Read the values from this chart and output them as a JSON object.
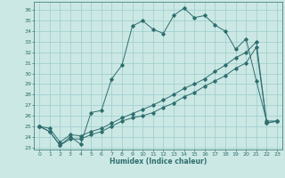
{
  "xlabel": "Humidex (Indice chaleur)",
  "bg_color": "#cce8e4",
  "grid_color": "#99cccc",
  "line_color": "#2d6e6e",
  "xlim": [
    -0.5,
    23.5
  ],
  "ylim": [
    22.8,
    36.8
  ],
  "xticks": [
    0,
    1,
    2,
    3,
    4,
    5,
    6,
    7,
    8,
    9,
    10,
    11,
    12,
    13,
    14,
    15,
    16,
    17,
    18,
    19,
    20,
    21,
    22,
    23
  ],
  "yticks": [
    23,
    24,
    25,
    26,
    27,
    28,
    29,
    30,
    31,
    32,
    33,
    34,
    35,
    36
  ],
  "line1_x": [
    0,
    1,
    2,
    3,
    4,
    5,
    6,
    7,
    8,
    9,
    10,
    11,
    12,
    13,
    14,
    15,
    16,
    17,
    18,
    19,
    20,
    21,
    22,
    23
  ],
  "line1_y": [
    25.0,
    24.5,
    23.2,
    24.0,
    23.3,
    26.3,
    26.5,
    29.5,
    30.8,
    34.5,
    35.0,
    34.2,
    33.8,
    35.5,
    36.2,
    35.3,
    35.5,
    34.6,
    34.0,
    32.3,
    33.3,
    29.3,
    25.5,
    25.5
  ],
  "line2_x": [
    0,
    1,
    2,
    3,
    4,
    5,
    6,
    7,
    8,
    9,
    10,
    11,
    12,
    13,
    14,
    15,
    16,
    17,
    18,
    19,
    20,
    21,
    22,
    23
  ],
  "line2_y": [
    25.0,
    24.5,
    23.2,
    23.8,
    23.8,
    24.2,
    24.5,
    25.0,
    25.5,
    25.8,
    26.0,
    26.3,
    26.8,
    27.2,
    27.8,
    28.2,
    28.8,
    29.3,
    29.8,
    30.5,
    31.0,
    32.5,
    25.3,
    25.5
  ],
  "line3_x": [
    0,
    1,
    2,
    3,
    4,
    5,
    6,
    7,
    8,
    9,
    10,
    11,
    12,
    13,
    14,
    15,
    16,
    17,
    18,
    19,
    20,
    21,
    22,
    23
  ],
  "line3_y": [
    25.0,
    24.8,
    23.5,
    24.2,
    24.1,
    24.5,
    24.8,
    25.3,
    25.8,
    26.2,
    26.6,
    27.0,
    27.5,
    28.0,
    28.6,
    29.0,
    29.5,
    30.2,
    30.8,
    31.5,
    32.0,
    33.0,
    25.3,
    25.5
  ]
}
